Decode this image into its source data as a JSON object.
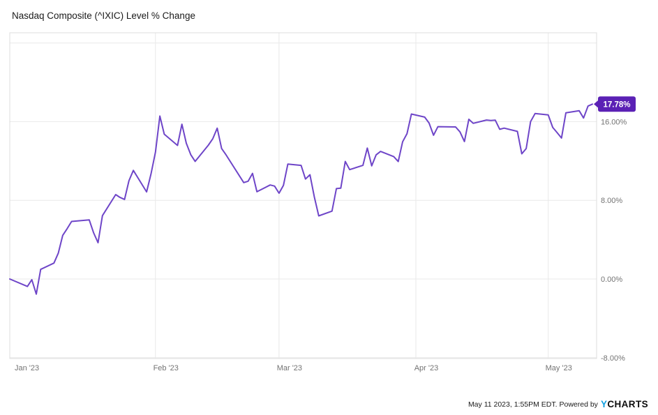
{
  "chart": {
    "title": "Nasdaq Composite (^IXIC) Level % Change",
    "last_value_label": "17.78%",
    "footer": {
      "timestamp_text": "May 11 2023, 1:55PM EDT. Powered by",
      "logo_y": "Y",
      "logo_rest": "CHARTS"
    },
    "colors": {
      "line": "#6e45c8",
      "badge": "#5b21b5",
      "badge_text": "#ffffff",
      "grid": "#e9e9e9",
      "border": "#dddddd",
      "axis_text": "#737373",
      "title_text": "#1a1a1a"
    }
  },
  "chart_data": {
    "type": "line",
    "title": "Nasdaq Composite (^IXIC) Level % Change",
    "xlabel": "",
    "ylabel": "",
    "ylim": [
      -8.1,
      25.0
    ],
    "grid": true,
    "legend": "none",
    "y_ticks": [
      {
        "value": 24,
        "label": ""
      },
      {
        "value": 16,
        "label": "16.00%"
      },
      {
        "value": 8,
        "label": "8.00%"
      },
      {
        "value": 0,
        "label": "0.00%"
      },
      {
        "value": -8,
        "label": "-8.00%"
      }
    ],
    "x_ticks": [
      {
        "date": "2022-12-30",
        "label": "Jan '23"
      },
      {
        "date": "2023-02-01",
        "label": "Feb '23"
      },
      {
        "date": "2023-03-01",
        "label": "Mar '23"
      },
      {
        "date": "2023-04-01",
        "label": "Apr '23"
      },
      {
        "date": "2023-05-01",
        "label": "May '23"
      }
    ],
    "series": [
      {
        "name": "Nasdaq Composite (^IXIC) Level % Change",
        "last_value": 17.78,
        "points": [
          [
            "2022-12-30",
            0.0
          ],
          [
            "2023-01-03",
            -0.76
          ],
          [
            "2023-01-04",
            -0.07
          ],
          [
            "2023-01-05",
            -1.54
          ],
          [
            "2023-01-06",
            0.98
          ],
          [
            "2023-01-09",
            1.62
          ],
          [
            "2023-01-10",
            2.64
          ],
          [
            "2023-01-11",
            4.44
          ],
          [
            "2023-01-12",
            5.11
          ],
          [
            "2023-01-13",
            5.85
          ],
          [
            "2023-01-17",
            6.01
          ],
          [
            "2023-01-18",
            4.69
          ],
          [
            "2023-01-19",
            3.69
          ],
          [
            "2023-01-20",
            6.44
          ],
          [
            "2023-01-23",
            8.58
          ],
          [
            "2023-01-24",
            8.29
          ],
          [
            "2023-01-25",
            8.09
          ],
          [
            "2023-01-26",
            9.99
          ],
          [
            "2023-01-27",
            11.04
          ],
          [
            "2023-01-30",
            8.86
          ],
          [
            "2023-01-31",
            10.68
          ],
          [
            "2023-02-01",
            12.9
          ],
          [
            "2023-02-02",
            16.57
          ],
          [
            "2023-02-03",
            14.72
          ],
          [
            "2023-02-06",
            13.58
          ],
          [
            "2023-02-07",
            15.74
          ],
          [
            "2023-02-08",
            13.8
          ],
          [
            "2023-02-09",
            12.64
          ],
          [
            "2023-02-10",
            11.96
          ],
          [
            "2023-02-13",
            13.62
          ],
          [
            "2023-02-14",
            14.27
          ],
          [
            "2023-02-15",
            15.33
          ],
          [
            "2023-02-16",
            13.27
          ],
          [
            "2023-02-17",
            12.62
          ],
          [
            "2023-02-21",
            9.8
          ],
          [
            "2023-02-22",
            9.94
          ],
          [
            "2023-02-23",
            10.74
          ],
          [
            "2023-02-24",
            8.87
          ],
          [
            "2023-02-27",
            9.56
          ],
          [
            "2023-02-28",
            9.45
          ],
          [
            "2023-03-01",
            8.72
          ],
          [
            "2023-03-02",
            9.52
          ],
          [
            "2023-03-03",
            11.68
          ],
          [
            "2023-03-06",
            11.55
          ],
          [
            "2023-03-07",
            10.16
          ],
          [
            "2023-03-08",
            10.6
          ],
          [
            "2023-03-09",
            8.33
          ],
          [
            "2023-03-10",
            6.42
          ],
          [
            "2023-03-13",
            6.9
          ],
          [
            "2023-03-14",
            9.19
          ],
          [
            "2023-03-15",
            9.24
          ],
          [
            "2023-03-16",
            11.95
          ],
          [
            "2023-03-17",
            11.12
          ],
          [
            "2023-03-20",
            11.55
          ],
          [
            "2023-03-21",
            13.31
          ],
          [
            "2023-03-22",
            11.5
          ],
          [
            "2023-03-23",
            12.62
          ],
          [
            "2023-03-24",
            12.97
          ],
          [
            "2023-03-27",
            12.44
          ],
          [
            "2023-03-28",
            11.94
          ],
          [
            "2023-03-29",
            13.95
          ],
          [
            "2023-03-30",
            14.78
          ],
          [
            "2023-03-31",
            16.77
          ],
          [
            "2023-04-03",
            16.46
          ],
          [
            "2023-04-04",
            15.86
          ],
          [
            "2023-04-05",
            14.62
          ],
          [
            "2023-04-06",
            15.49
          ],
          [
            "2023-04-10",
            15.46
          ],
          [
            "2023-04-11",
            14.96
          ],
          [
            "2023-04-12",
            13.98
          ],
          [
            "2023-04-13",
            16.24
          ],
          [
            "2023-04-14",
            15.83
          ],
          [
            "2023-04-17",
            16.16
          ],
          [
            "2023-04-18",
            16.12
          ],
          [
            "2023-04-19",
            16.15
          ],
          [
            "2023-04-20",
            15.22
          ],
          [
            "2023-04-21",
            15.34
          ],
          [
            "2023-04-24",
            15.01
          ],
          [
            "2023-04-25",
            12.73
          ],
          [
            "2023-04-26",
            13.26
          ],
          [
            "2023-04-27",
            16.01
          ],
          [
            "2023-04-28",
            16.82
          ],
          [
            "2023-05-01",
            16.68
          ],
          [
            "2023-05-02",
            15.42
          ],
          [
            "2023-05-03",
            14.89
          ],
          [
            "2023-05-04",
            14.33
          ],
          [
            "2023-05-05",
            16.9
          ],
          [
            "2023-05-08",
            17.11
          ],
          [
            "2023-05-09",
            16.37
          ],
          [
            "2023-05-10",
            17.58
          ],
          [
            "2023-05-11",
            17.78
          ]
        ]
      }
    ]
  }
}
